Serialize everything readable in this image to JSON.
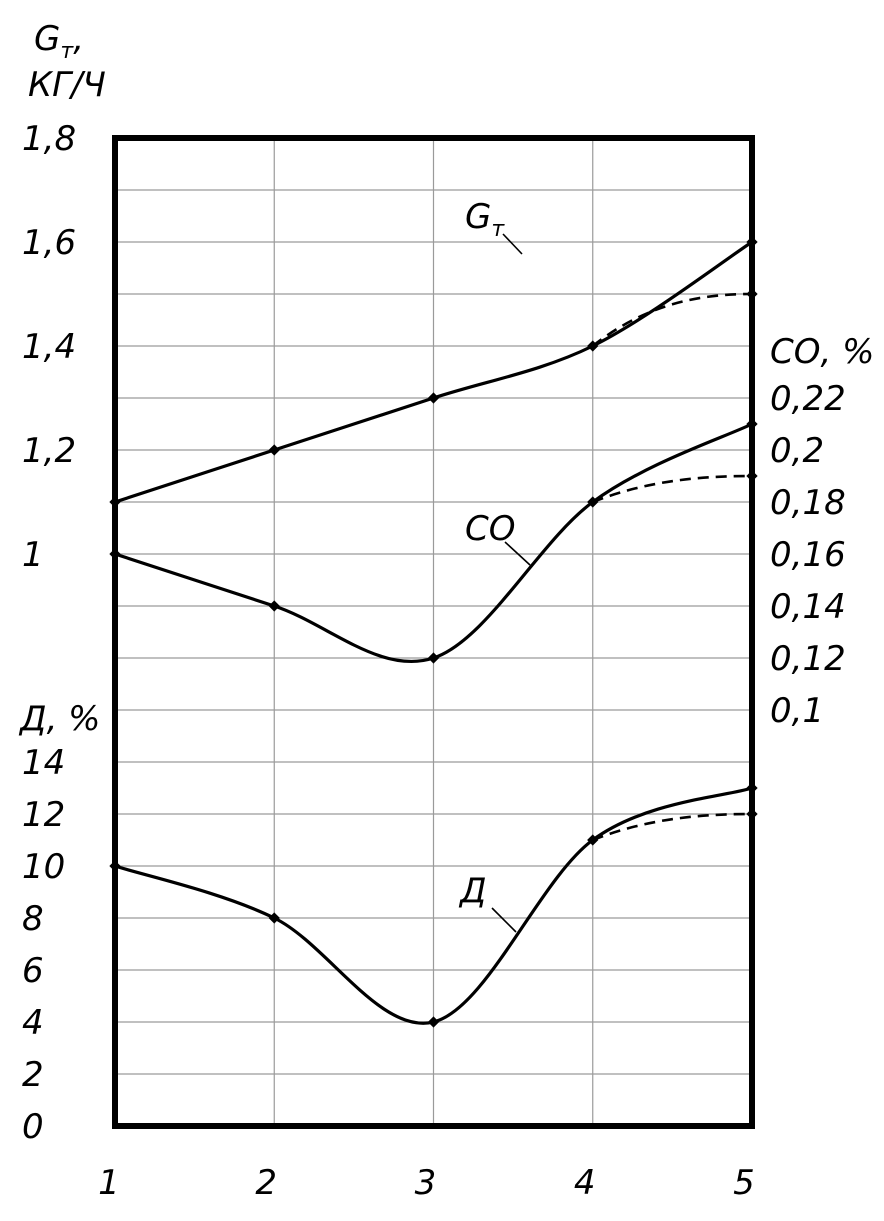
{
  "chart_data": {
    "type": "line",
    "x": [
      1,
      2,
      3,
      4,
      5
    ],
    "x_tick_labels": [
      "1",
      "2",
      "3",
      "4",
      "5"
    ],
    "xlim": [
      1,
      5
    ],
    "grid": true,
    "left_upper_axis": {
      "label_symbol": "G",
      "label_subscript": "т",
      "label_suffix": ",",
      "label_unit": "КГ/Ч",
      "ylim": [
        0.6,
        1.8
      ],
      "tick_labels": [
        "1",
        "1,2",
        "1,4",
        "1,6",
        "1,8"
      ],
      "tick_values": [
        1.0,
        1.2,
        1.4,
        1.6,
        1.8
      ]
    },
    "right_axis": {
      "label": "СО, %",
      "ylim": [
        0.08,
        0.22
      ],
      "tick_labels": [
        "0,1",
        "0,12",
        "0,14",
        "0,16",
        "0,18",
        "0,2",
        "0,22"
      ],
      "tick_values": [
        0.1,
        0.12,
        0.14,
        0.16,
        0.18,
        0.2,
        0.22
      ]
    },
    "left_lower_axis": {
      "label": "Д, %",
      "ylim": [
        0,
        16
      ],
      "tick_labels": [
        "0",
        "2",
        "4",
        "6",
        "8",
        "10",
        "12",
        "14"
      ],
      "tick_values": [
        0,
        2,
        4,
        6,
        8,
        10,
        12,
        14
      ]
    },
    "series": [
      {
        "label_symbol": "G",
        "label_subscript": "т",
        "axis": "left_upper_axis",
        "values": [
          1.1,
          1.2,
          1.3,
          1.4,
          1.6
        ],
        "dashed_branch": {
          "x": [
            4,
            5
          ],
          "values": [
            1.4,
            1.5
          ]
        }
      },
      {
        "label": "СО",
        "axis": "right_axis",
        "values": [
          0.16,
          0.14,
          0.12,
          0.18,
          0.21
        ],
        "dashed_branch": {
          "x": [
            4,
            5
          ],
          "values": [
            0.18,
            0.19
          ]
        }
      },
      {
        "label": "Д",
        "axis": "left_lower_axis",
        "values": [
          10,
          8,
          4,
          11,
          13
        ],
        "dashed_branch": {
          "x": [
            4,
            5
          ],
          "values": [
            11,
            12
          ]
        }
      }
    ]
  }
}
